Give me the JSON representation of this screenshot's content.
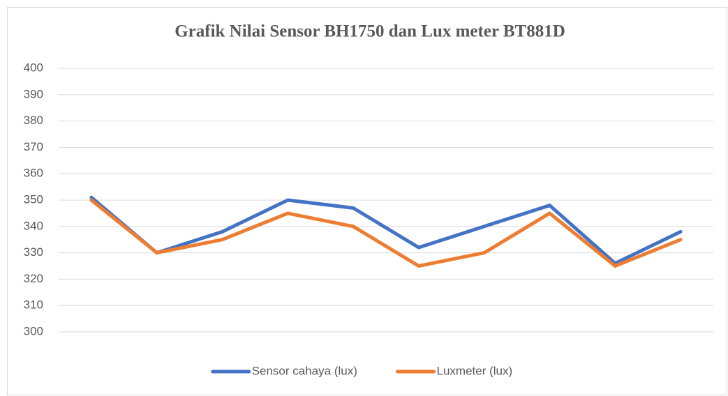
{
  "chart_data": {
    "type": "line",
    "title": "Grafik Nilai Sensor BH1750 dan Lux meter BT881D",
    "categories": [
      null,
      null,
      null,
      null,
      null,
      null,
      null,
      null,
      null,
      null
    ],
    "series": [
      {
        "name": "Sensor cahaya (lux)",
        "color": "#4472c4",
        "values": [
          351,
          330,
          338,
          350,
          347,
          332,
          340,
          348,
          326,
          338
        ]
      },
      {
        "name": "Luxmeter (lux)",
        "color": "#ed7d31",
        "values": [
          350,
          330,
          335,
          345,
          340,
          325,
          330,
          345,
          325,
          335
        ]
      }
    ],
    "ylim": [
      300,
      400
    ],
    "yticks": [
      300,
      310,
      320,
      330,
      340,
      350,
      360,
      370,
      380,
      390,
      400
    ],
    "grid": true,
    "legend": "bottom"
  }
}
